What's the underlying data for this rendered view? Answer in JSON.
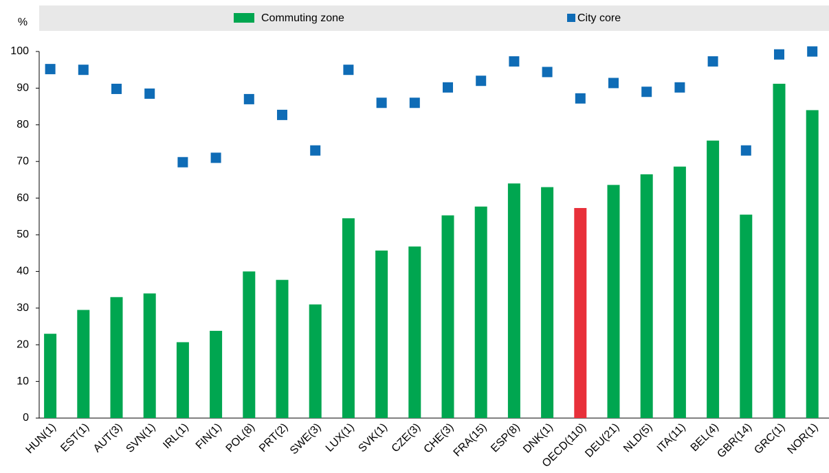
{
  "chart_data": {
    "type": "bar",
    "y_label": "%",
    "categories": [
      "HUN(1)",
      "EST(1)",
      "AUT(3)",
      "SVN(1)",
      "IRL(1)",
      "FIN(1)",
      "POL(8)",
      "PRT(2)",
      "SWE(3)",
      "LUX(1)",
      "SVK(1)",
      "CZE(3)",
      "CHE(3)",
      "FRA(15)",
      "ESP(8)",
      "DNK(1)",
      "OECD(110)",
      "DEU(21)",
      "NLD(5)",
      "ITA(11)",
      "BEL(4)",
      "GBR(14)",
      "GRC(1)",
      "NOR(1)"
    ],
    "series": [
      {
        "name": "Commuting zone",
        "type": "bar",
        "color": "#00a650",
        "colors": [
          "#00a650",
          "#00a650",
          "#00a650",
          "#00a650",
          "#00a650",
          "#00a650",
          "#00a650",
          "#00a650",
          "#00a650",
          "#00a650",
          "#00a650",
          "#00a650",
          "#00a650",
          "#00a650",
          "#00a650",
          "#00a650",
          "#e8303a",
          "#00a650",
          "#00a650",
          "#00a650",
          "#00a650",
          "#00a650",
          "#00a650",
          "#00a650"
        ],
        "values": [
          23,
          29.5,
          33,
          34,
          20.7,
          23.8,
          40,
          37.7,
          31,
          54.5,
          45.7,
          46.8,
          55.3,
          57.7,
          64,
          63,
          57.3,
          63.6,
          66.5,
          68.6,
          75.7,
          55.5,
          91.2,
          84
        ]
      },
      {
        "name": "City core",
        "type": "marker",
        "color": "#0f6cb6",
        "values": [
          95.2,
          95,
          89.8,
          88.5,
          69.8,
          71,
          87,
          82.7,
          73,
          95,
          86,
          86,
          90.2,
          92,
          97.3,
          94.4,
          87.2,
          91.4,
          89,
          90.2,
          97.3,
          73,
          99.2,
          100
        ]
      }
    ],
    "ylim": [
      0,
      100
    ],
    "yticks": [
      0,
      10,
      20,
      30,
      40,
      50,
      60,
      70,
      80,
      90,
      100
    ],
    "grid": false
  }
}
